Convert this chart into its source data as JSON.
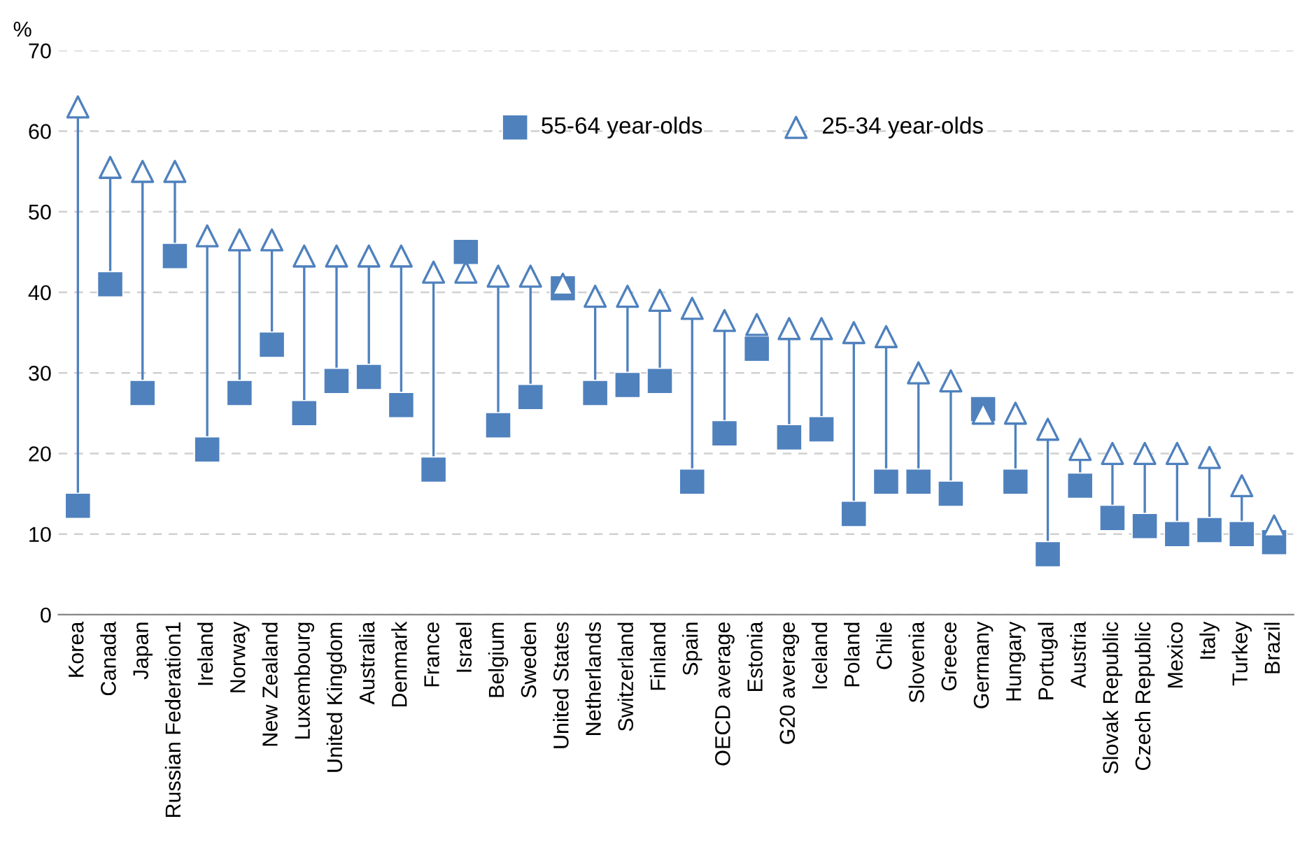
{
  "chart_data": {
    "type": "scatter",
    "ylabel": "%",
    "categories": [
      "Korea",
      "Canada",
      "Japan",
      "Russian Federation1",
      "Ireland",
      "Norway",
      "New Zealand",
      "Luxembourg",
      "United Kingdom",
      "Australia",
      "Denmark",
      "France",
      "Israel",
      "Belgium",
      "Sweden",
      "United States",
      "Netherlands",
      "Switzerland",
      "Finland",
      "Spain",
      "OECD average",
      "Estonia",
      "G20 average",
      "Iceland",
      "Poland",
      "Chile",
      "Slovenia",
      "Greece",
      "Germany",
      "Hungary",
      "Portugal",
      "Austria",
      "Slovak Republic",
      "Czech Republic",
      "Mexico",
      "Italy",
      "Turkey",
      "Brazil"
    ],
    "series": [
      {
        "name": "55-64 year-olds",
        "color": "#4f81bd",
        "marker": "square",
        "values": [
          13.5,
          41,
          27.5,
          44.5,
          20.5,
          27.5,
          33.5,
          25,
          29,
          29.5,
          26,
          18,
          45,
          23.5,
          27,
          40.5,
          27.5,
          28.5,
          29,
          16.5,
          22.5,
          33,
          22,
          23,
          12.5,
          16.5,
          16.5,
          15,
          25.5,
          16.5,
          7.5,
          16,
          12,
          11,
          10,
          10.5,
          10,
          9
        ]
      },
      {
        "name": "25-34 year-olds",
        "color": "#4f81bd",
        "marker": "triangle",
        "values": [
          63,
          55.5,
          55,
          55,
          47,
          46.5,
          46.5,
          44.5,
          44.5,
          44.5,
          44.5,
          42.5,
          42.5,
          42,
          42,
          41,
          39.5,
          39.5,
          39,
          38,
          36.5,
          36,
          35.5,
          35.5,
          35,
          34.5,
          30,
          29,
          25,
          25,
          23,
          20.5,
          20,
          20,
          20,
          19.5,
          16,
          11
        ]
      }
    ],
    "ylim": [
      0,
      70
    ],
    "yticks": [
      0,
      10,
      20,
      30,
      40,
      50,
      60,
      70
    ],
    "grid": "y",
    "legend": "top"
  }
}
